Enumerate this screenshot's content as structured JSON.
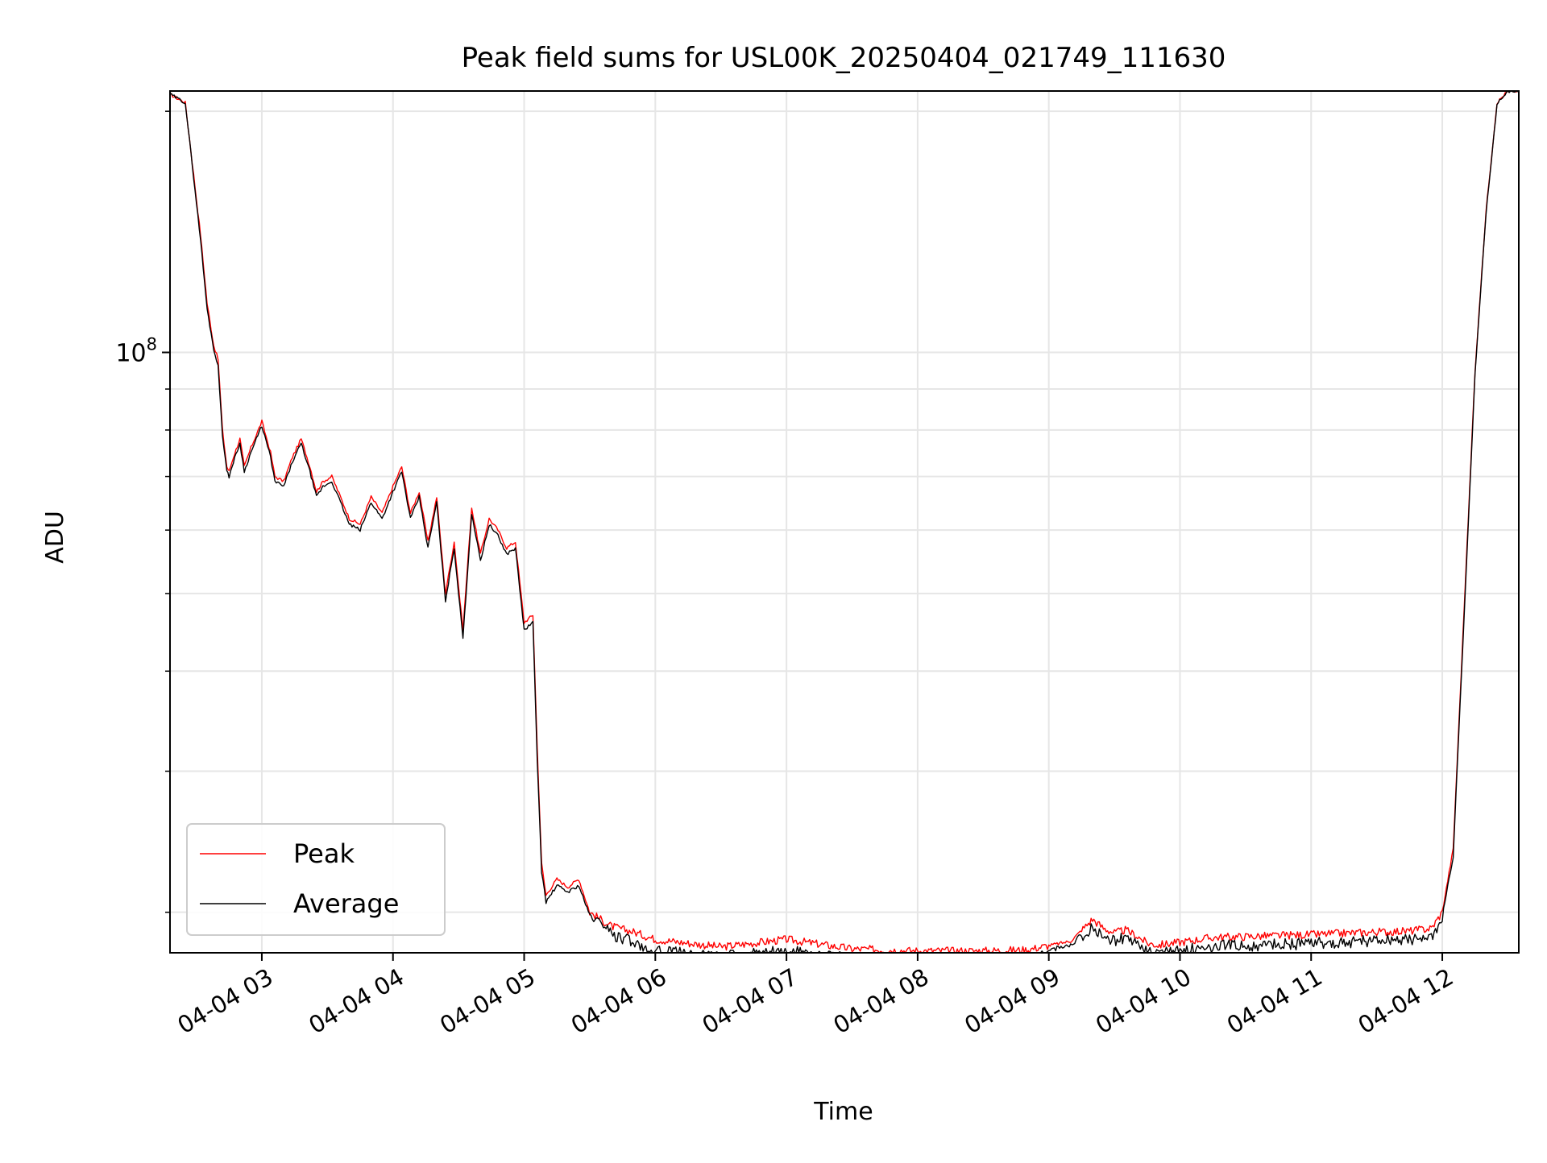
{
  "chart_data": {
    "type": "line",
    "title": "Peak field sums for USL00K_20250404_021749_111630",
    "xlabel": "Time",
    "ylabel": "ADU",
    "yscale": "log",
    "grid": true,
    "legend_position": "lower-left",
    "x_ticks": [
      "04-04 03",
      "04-04 04",
      "04-04 05",
      "04-04 06",
      "04-04 07",
      "04-04 08",
      "04-04 09",
      "04-04 10",
      "04-04 11",
      "04-04 12"
    ],
    "y_tick_base": "10",
    "y_tick_exponent": "8",
    "xlim": [
      "2025-04-04T02:18:00",
      "2025-04-04T12:35:00"
    ],
    "ylim": [
      17800000,
      212000000
    ],
    "series": [
      {
        "name": "Peak",
        "color": "#ff0000",
        "x": [
          "02:18",
          "02:25",
          "02:32",
          "02:35",
          "02:38",
          "02:40",
          "02:42",
          "02:44",
          "02:45",
          "02:47",
          "02:50",
          "02:52",
          "02:55",
          "03:00",
          "03:04",
          "03:06",
          "03:10",
          "03:14",
          "03:18",
          "03:22",
          "03:25",
          "03:28",
          "03:32",
          "03:36",
          "03:40",
          "03:45",
          "03:50",
          "03:55",
          "04:00",
          "04:04",
          "04:08",
          "04:12",
          "04:16",
          "04:20",
          "04:24",
          "04:28",
          "04:32",
          "04:36",
          "04:40",
          "04:44",
          "04:48",
          "04:52",
          "04:56",
          "05:00",
          "05:04",
          "05:06",
          "05:08",
          "05:10",
          "05:15",
          "05:20",
          "05:25",
          "05:30",
          "05:40",
          "05:50",
          "06:00",
          "06:30",
          "07:00",
          "07:30",
          "08:00",
          "08:30",
          "08:50",
          "09:10",
          "09:20",
          "09:25",
          "09:30",
          "09:35",
          "09:40",
          "09:45",
          "09:50",
          "10:00",
          "10:15",
          "10:30",
          "11:00",
          "11:30",
          "11:45",
          "11:55",
          "12:00",
          "12:05",
          "12:10",
          "12:15",
          "12:20",
          "12:25",
          "12:30",
          "12:35"
        ],
        "y": [
          210000000,
          205000000,
          140000000,
          115000000,
          102000000,
          98000000,
          80000000,
          72000000,
          71000000,
          74000000,
          78000000,
          72000000,
          76000000,
          82000000,
          75000000,
          70000000,
          69000000,
          74000000,
          78000000,
          72000000,
          67000000,
          69000000,
          70000000,
          66000000,
          62000000,
          61000000,
          66000000,
          63000000,
          68000000,
          72000000,
          63000000,
          67000000,
          58000000,
          66000000,
          50000000,
          58000000,
          45000000,
          64000000,
          56000000,
          62000000,
          60000000,
          57000000,
          58000000,
          46000000,
          47000000,
          32000000,
          23000000,
          21000000,
          22000000,
          21500000,
          22000000,
          20000000,
          19200000,
          18900000,
          18500000,
          18100000,
          18500000,
          18000000,
          17900000,
          17900000,
          17950000,
          18400000,
          19600000,
          19100000,
          18850000,
          19000000,
          18700000,
          18300000,
          18200000,
          18350000,
          18600000,
          18650000,
          18750000,
          18900000,
          18950000,
          19100000,
          20000000,
          24000000,
          48000000,
          95000000,
          150000000,
          205000000,
          212000000,
          212000000
        ]
      },
      {
        "name": "Average",
        "color": "#000000",
        "x": [
          "02:18",
          "02:25",
          "02:32",
          "02:35",
          "02:38",
          "02:40",
          "02:42",
          "02:44",
          "02:45",
          "02:47",
          "02:50",
          "02:52",
          "02:55",
          "03:00",
          "03:04",
          "03:06",
          "03:10",
          "03:14",
          "03:18",
          "03:22",
          "03:25",
          "03:28",
          "03:32",
          "03:36",
          "03:40",
          "03:45",
          "03:50",
          "03:55",
          "04:00",
          "04:04",
          "04:08",
          "04:12",
          "04:16",
          "04:20",
          "04:24",
          "04:28",
          "04:32",
          "04:36",
          "04:40",
          "04:44",
          "04:48",
          "04:52",
          "04:56",
          "05:00",
          "05:04",
          "05:06",
          "05:08",
          "05:10",
          "05:15",
          "05:20",
          "05:25",
          "05:30",
          "05:40",
          "05:50",
          "06:00",
          "06:30",
          "07:00",
          "07:30",
          "08:00",
          "08:30",
          "08:50",
          "09:10",
          "09:20",
          "09:25",
          "09:30",
          "09:35",
          "09:40",
          "09:45",
          "09:50",
          "10:00",
          "10:15",
          "10:30",
          "11:00",
          "11:30",
          "11:45",
          "11:55",
          "12:00",
          "12:05",
          "12:10",
          "12:15",
          "12:20",
          "12:25",
          "12:30",
          "12:35"
        ],
        "y": [
          210000000,
          205000000,
          138000000,
          113000000,
          101000000,
          96000000,
          79000000,
          71000000,
          70000000,
          73000000,
          77000000,
          71000000,
          75000000,
          81000000,
          74000000,
          69000000,
          68000000,
          73000000,
          77000000,
          71000000,
          66000000,
          68000000,
          69000000,
          65000000,
          61000000,
          60000000,
          65000000,
          62000000,
          67000000,
          71000000,
          62000000,
          66000000,
          57000000,
          65000000,
          49000000,
          57000000,
          44000000,
          63000000,
          55000000,
          61000000,
          59000000,
          56000000,
          57000000,
          45000000,
          46000000,
          31000000,
          22500000,
          20600000,
          21600000,
          21200000,
          21600000,
          19800000,
          19000000,
          18700000,
          18200000,
          17900000,
          18200000,
          17800000,
          17750000,
          17800000,
          17850000,
          18300000,
          19500000,
          19000000,
          18750000,
          18900000,
          18600000,
          18150000,
          18050000,
          18200000,
          18450000,
          18500000,
          18600000,
          18750000,
          18800000,
          18950000,
          19800000,
          23500000,
          47000000,
          94000000,
          149000000,
          204000000,
          212000000,
          212000000
        ]
      }
    ]
  }
}
